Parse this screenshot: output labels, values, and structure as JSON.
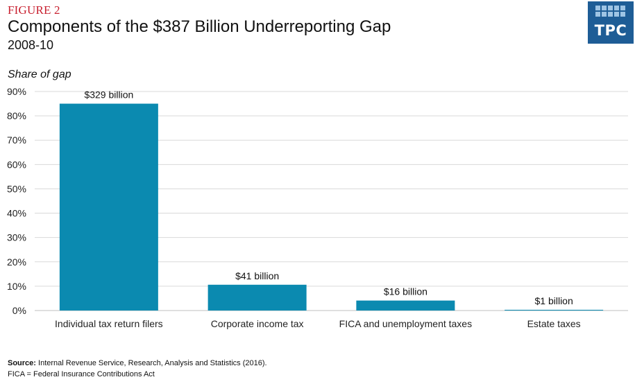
{
  "figure_label": "FIGURE 2",
  "logo_text": "TPC",
  "colors": {
    "bar": "#0b8ab0",
    "figure_label": "#c8202f",
    "logo_bg": "#1e5d96",
    "gridline": "#d9d9d9"
  },
  "chart_data": {
    "type": "bar",
    "title": "Components of the $387 Billion Underreporting Gap",
    "subtitle": "2008-10",
    "ylabel": "Share of gap",
    "xlabel": "",
    "ylim": [
      0,
      90
    ],
    "yticks": [
      0,
      10,
      20,
      30,
      40,
      50,
      60,
      70,
      80,
      90
    ],
    "ytick_labels": [
      "0%",
      "10%",
      "20%",
      "30%",
      "40%",
      "50%",
      "60%",
      "70%",
      "80%",
      "90%"
    ],
    "grid": true,
    "categories": [
      "Individual tax return filers",
      "Corporate income tax",
      "FICA and unemployment taxes",
      "Estate taxes"
    ],
    "values": [
      85,
      10.6,
      4.1,
      0.3
    ],
    "data_labels": [
      "$329 billion",
      "$41 billion",
      "$16 billion",
      "$1 billion"
    ]
  },
  "source": {
    "label": "Source:",
    "text": "Internal Revenue Service, Research, Analysis and Statistics (2016).",
    "note": "FICA = Federal Insurance Contributions Act"
  }
}
